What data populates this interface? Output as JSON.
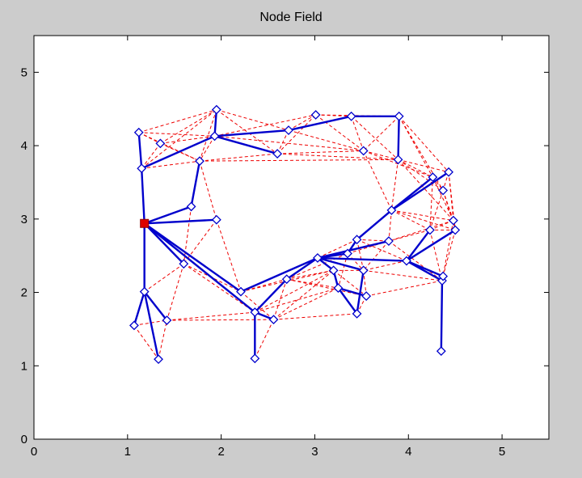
{
  "chart_data": {
    "type": "scatter",
    "title": "Node Field",
    "xlabel": "",
    "ylabel": "",
    "xlim": [
      0,
      5.5
    ],
    "ylim": [
      0,
      5.5
    ],
    "xticks": [
      0,
      1,
      2,
      3,
      4,
      5
    ],
    "yticks": [
      0,
      1,
      2,
      3,
      4,
      5
    ],
    "grid": false,
    "colors": {
      "tree": "#0000cc",
      "mesh": "#ee0000",
      "sink": "#dd0000",
      "figure_bg": "#cccccc",
      "axes_bg": "#ffffff"
    },
    "sink": {
      "x": 1.18,
      "y": 2.94
    },
    "nodes": [
      {
        "x": 1.12,
        "y": 4.18
      },
      {
        "x": 1.15,
        "y": 3.69
      },
      {
        "x": 1.35,
        "y": 4.03
      },
      {
        "x": 1.95,
        "y": 4.49
      },
      {
        "x": 1.93,
        "y": 4.13
      },
      {
        "x": 1.77,
        "y": 3.79
      },
      {
        "x": 1.68,
        "y": 3.17
      },
      {
        "x": 1.95,
        "y": 2.99
      },
      {
        "x": 1.6,
        "y": 2.39
      },
      {
        "x": 1.18,
        "y": 2.01
      },
      {
        "x": 1.07,
        "y": 1.55
      },
      {
        "x": 1.42,
        "y": 1.62
      },
      {
        "x": 1.33,
        "y": 1.09
      },
      {
        "x": 2.21,
        "y": 2.01
      },
      {
        "x": 2.36,
        "y": 1.73
      },
      {
        "x": 2.36,
        "y": 1.1
      },
      {
        "x": 2.56,
        "y": 1.63
      },
      {
        "x": 2.6,
        "y": 3.89
      },
      {
        "x": 2.72,
        "y": 4.21
      },
      {
        "x": 3.01,
        "y": 4.42
      },
      {
        "x": 3.39,
        "y": 4.4
      },
      {
        "x": 3.9,
        "y": 4.4
      },
      {
        "x": 3.52,
        "y": 3.93
      },
      {
        "x": 3.89,
        "y": 3.81
      },
      {
        "x": 4.26,
        "y": 3.57
      },
      {
        "x": 4.43,
        "y": 3.64
      },
      {
        "x": 4.37,
        "y": 3.39
      },
      {
        "x": 3.82,
        "y": 3.12
      },
      {
        "x": 4.48,
        "y": 2.98
      },
      {
        "x": 4.5,
        "y": 2.85
      },
      {
        "x": 4.23,
        "y": 2.85
      },
      {
        "x": 3.45,
        "y": 2.72
      },
      {
        "x": 3.35,
        "y": 2.53
      },
      {
        "x": 3.03,
        "y": 2.47
      },
      {
        "x": 3.79,
        "y": 2.7
      },
      {
        "x": 3.98,
        "y": 2.43
      },
      {
        "x": 3.2,
        "y": 2.3
      },
      {
        "x": 3.52,
        "y": 2.3
      },
      {
        "x": 2.7,
        "y": 2.18
      },
      {
        "x": 3.25,
        "y": 2.06
      },
      {
        "x": 3.55,
        "y": 1.95
      },
      {
        "x": 3.45,
        "y": 1.71
      },
      {
        "x": 4.36,
        "y": 2.16
      },
      {
        "x": 4.37,
        "y": 2.22
      },
      {
        "x": 4.35,
        "y": 1.2
      }
    ],
    "tree_edges": [
      [
        -1,
        1
      ],
      [
        -1,
        6
      ],
      [
        -1,
        7
      ],
      [
        -1,
        8
      ],
      [
        -1,
        9
      ],
      [
        -1,
        13
      ],
      [
        -1,
        14
      ],
      [
        1,
        0
      ],
      [
        1,
        4
      ],
      [
        4,
        3
      ],
      [
        4,
        17
      ],
      [
        4,
        18
      ],
      [
        18,
        20
      ],
      [
        20,
        21
      ],
      [
        21,
        23
      ],
      [
        6,
        5
      ],
      [
        9,
        10
      ],
      [
        9,
        11
      ],
      [
        9,
        12
      ],
      [
        14,
        15
      ],
      [
        14,
        16
      ],
      [
        14,
        38
      ],
      [
        38,
        33
      ],
      [
        13,
        33
      ],
      [
        33,
        32
      ],
      [
        32,
        31
      ],
      [
        31,
        27
      ],
      [
        27,
        24
      ],
      [
        27,
        25
      ],
      [
        33,
        37
      ],
      [
        33,
        36
      ],
      [
        36,
        39
      ],
      [
        39,
        40
      ],
      [
        39,
        41
      ],
      [
        33,
        34
      ],
      [
        33,
        35
      ],
      [
        35,
        30
      ],
      [
        35,
        29
      ],
      [
        35,
        42
      ],
      [
        35,
        43
      ],
      [
        42,
        44
      ],
      [
        37,
        41
      ]
    ],
    "mesh_edges": [
      [
        0,
        2
      ],
      [
        0,
        3
      ],
      [
        0,
        4
      ],
      [
        0,
        5
      ],
      [
        1,
        2
      ],
      [
        1,
        5
      ],
      [
        1,
        3
      ],
      [
        2,
        3
      ],
      [
        2,
        4
      ],
      [
        2,
        5
      ],
      [
        3,
        17
      ],
      [
        3,
        18
      ],
      [
        3,
        5
      ],
      [
        4,
        5
      ],
      [
        4,
        19
      ],
      [
        4,
        22
      ],
      [
        5,
        17
      ],
      [
        5,
        7
      ],
      [
        5,
        23
      ],
      [
        6,
        8
      ],
      [
        7,
        8
      ],
      [
        7,
        13
      ],
      [
        8,
        11
      ],
      [
        8,
        9
      ],
      [
        8,
        13
      ],
      [
        8,
        14
      ],
      [
        11,
        14
      ],
      [
        11,
        16
      ],
      [
        10,
        12
      ],
      [
        13,
        16
      ],
      [
        13,
        38
      ],
      [
        16,
        36
      ],
      [
        16,
        38
      ],
      [
        17,
        18
      ],
      [
        17,
        19
      ],
      [
        17,
        22
      ],
      [
        17,
        23
      ],
      [
        18,
        19
      ],
      [
        18,
        22
      ],
      [
        19,
        20
      ],
      [
        19,
        22
      ],
      [
        19,
        21
      ],
      [
        20,
        22
      ],
      [
        20,
        23
      ],
      [
        21,
        22
      ],
      [
        21,
        24
      ],
      [
        21,
        25
      ],
      [
        21,
        26
      ],
      [
        22,
        23
      ],
      [
        22,
        24
      ],
      [
        22,
        27
      ],
      [
        23,
        24
      ],
      [
        23,
        25
      ],
      [
        23,
        26
      ],
      [
        23,
        27
      ],
      [
        23,
        28
      ],
      [
        24,
        26
      ],
      [
        24,
        28
      ],
      [
        24,
        30
      ],
      [
        25,
        26
      ],
      [
        25,
        28
      ],
      [
        25,
        29
      ],
      [
        26,
        28
      ],
      [
        26,
        29
      ],
      [
        26,
        30
      ],
      [
        27,
        30
      ],
      [
        27,
        31
      ],
      [
        27,
        34
      ],
      [
        27,
        28
      ],
      [
        27,
        29
      ],
      [
        28,
        30
      ],
      [
        28,
        34
      ],
      [
        28,
        42
      ],
      [
        29,
        30
      ],
      [
        29,
        43
      ],
      [
        30,
        34
      ],
      [
        30,
        42
      ],
      [
        31,
        34
      ],
      [
        31,
        35
      ],
      [
        31,
        37
      ],
      [
        32,
        34
      ],
      [
        32,
        37
      ],
      [
        32,
        39
      ],
      [
        33,
        38
      ],
      [
        34,
        37
      ],
      [
        34,
        42
      ],
      [
        35,
        43
      ],
      [
        35,
        37
      ],
      [
        36,
        37
      ],
      [
        36,
        38
      ],
      [
        36,
        40
      ],
      [
        37,
        40
      ],
      [
        37,
        42
      ],
      [
        38,
        39
      ],
      [
        38,
        40
      ],
      [
        39,
        41
      ],
      [
        40,
        41
      ],
      [
        40,
        42
      ],
      [
        14,
        36
      ],
      [
        14,
        39
      ],
      [
        15,
        16
      ],
      [
        16,
        41
      ],
      [
        13,
        36
      ],
      [
        12,
        11
      ],
      [
        10,
        11
      ],
      [
        16,
        39
      ],
      [
        38,
        32
      ],
      [
        31,
        33
      ]
    ]
  }
}
